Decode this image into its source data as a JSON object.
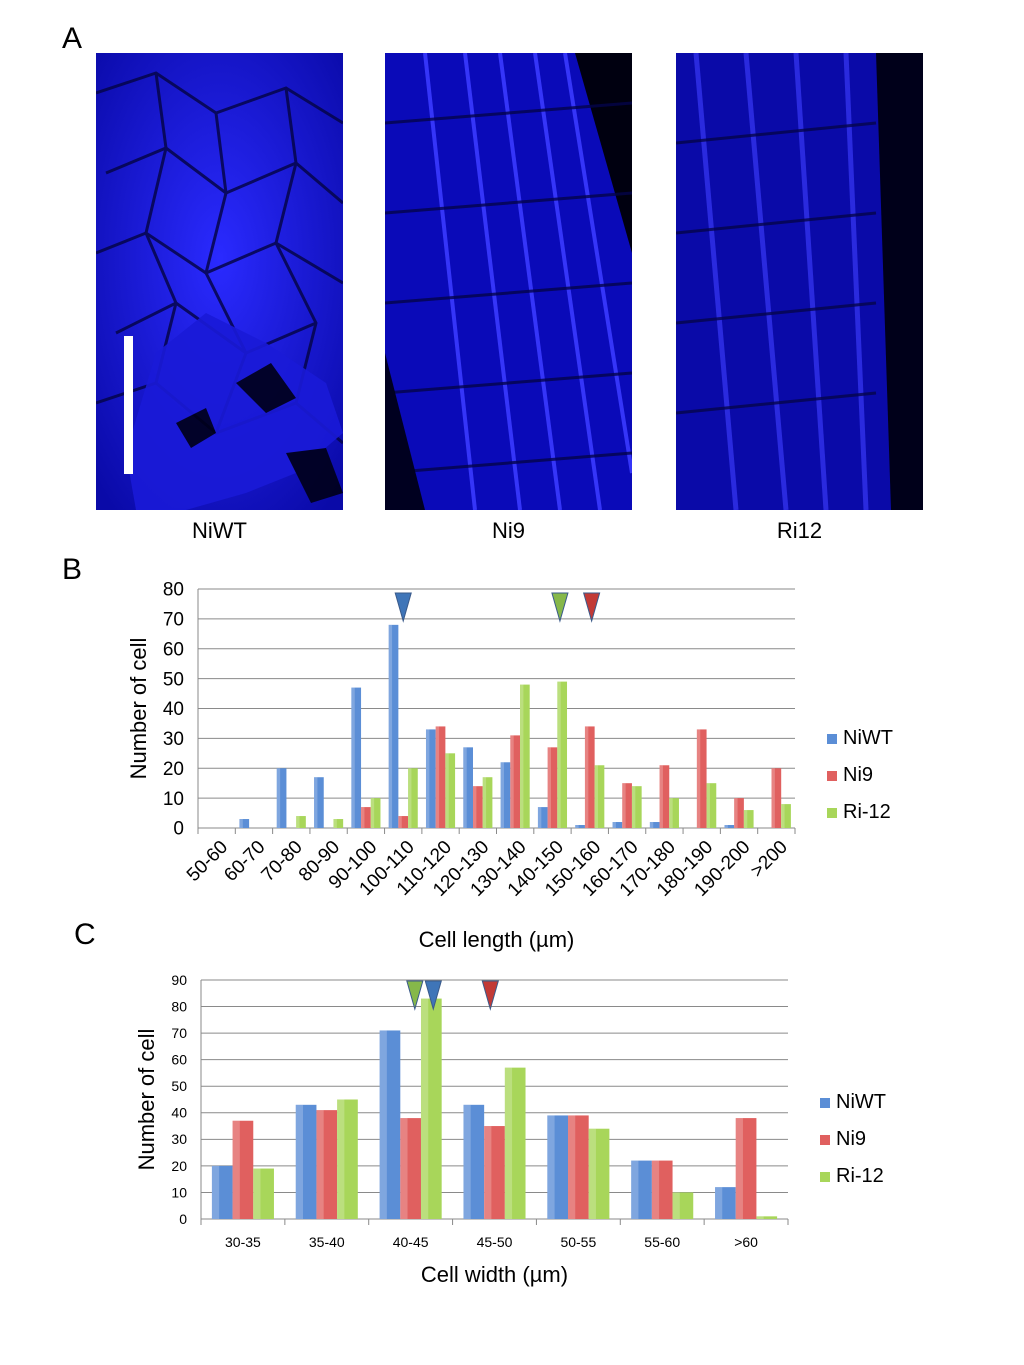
{
  "panels": {
    "a": "A",
    "b": "B",
    "c": "C"
  },
  "images": [
    {
      "label": "NiWT"
    },
    {
      "label": "Ni9"
    },
    {
      "label": "Ri12"
    }
  ],
  "colors": {
    "NiWT": "#5b8ed6",
    "Ni9": "#e0605f",
    "Ri12": "#a8d65a",
    "arrow_NiWT": "#3f75b8",
    "arrow_Ni9": "#c23a36",
    "arrow_Ri12": "#86b84a",
    "grid": "#8a8a8a",
    "micro_bg": "#0a0a6e"
  },
  "chart_data": [
    {
      "type": "bar",
      "panel": "B",
      "ylabel": "Number of cell",
      "xlabel": "Cell length (µm)",
      "ylim": [
        0,
        80
      ],
      "yticks": [
        0,
        10,
        20,
        30,
        40,
        50,
        60,
        70,
        80
      ],
      "grid": true,
      "legend": "right",
      "categories": [
        "50-60",
        "60-70",
        "70-80",
        "80-90",
        "90-100",
        "100-110",
        "110-120",
        "120-130",
        "130-140",
        "140-150",
        "150-160",
        "160-170",
        "170-180",
        "180-190",
        "190-200",
        ">200"
      ],
      "series": [
        {
          "name": "NiWT",
          "values": [
            0,
            3,
            20,
            17,
            47,
            68,
            33,
            27,
            22,
            7,
            1,
            2,
            2,
            0,
            1,
            0
          ]
        },
        {
          "name": "Ni9",
          "values": [
            0,
            0,
            0,
            0,
            7,
            4,
            34,
            14,
            31,
            27,
            34,
            15,
            21,
            33,
            10,
            20
          ]
        },
        {
          "name": "Ri-12",
          "values": [
            0,
            0,
            4,
            3,
            10,
            20,
            25,
            17,
            48,
            49,
            21,
            14,
            10,
            15,
            6,
            8
          ]
        }
      ],
      "arrows": [
        {
          "series": "NiWT",
          "category_position": 5.5
        },
        {
          "series": "Ri-12",
          "category_position": 9.7
        },
        {
          "series": "Ni9",
          "category_position": 10.55
        }
      ]
    },
    {
      "type": "bar",
      "panel": "C",
      "ylabel": "Number of cell",
      "xlabel": "Cell width (µm)",
      "ylim": [
        0,
        90
      ],
      "yticks": [
        0,
        10,
        20,
        30,
        40,
        50,
        60,
        70,
        80,
        90
      ],
      "grid": true,
      "legend": "right",
      "categories": [
        "30-35",
        "35-40",
        "40-45",
        "45-50",
        "50-55",
        "55-60",
        ">60"
      ],
      "series": [
        {
          "name": "NiWT",
          "values": [
            20,
            43,
            71,
            43,
            39,
            22,
            12
          ]
        },
        {
          "name": "Ni9",
          "values": [
            37,
            41,
            38,
            35,
            39,
            22,
            38
          ]
        },
        {
          "name": "Ri-12",
          "values": [
            19,
            45,
            83,
            57,
            34,
            10,
            1
          ]
        }
      ],
      "arrows": [
        {
          "series": "Ri-12",
          "category_position": 2.55
        },
        {
          "series": "NiWT",
          "category_position": 2.77
        },
        {
          "series": "Ni9",
          "category_position": 3.45
        }
      ]
    }
  ]
}
